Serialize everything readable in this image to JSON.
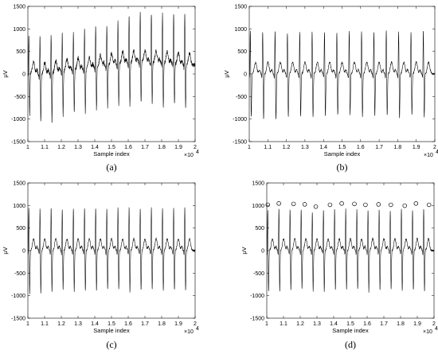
{
  "chart_data": [
    {
      "type": "line",
      "panel_label": "(a)",
      "xlabel": "Sample index",
      "ylabel": "μV",
      "x_exponent": "×10",
      "x_exponent_power": "4",
      "xlim": [
        1,
        2
      ],
      "ylim": [
        -1500,
        1500
      ],
      "xticks": [
        "1",
        "1.1",
        "1.2",
        "1.3",
        "1.4",
        "1.5",
        "1.6",
        "1.7",
        "1.8",
        "1.9",
        "2"
      ],
      "yticks": [
        "1500",
        "1000",
        "500",
        "0",
        "-500",
        "-1000",
        "-1500"
      ],
      "signal": {
        "beat_count": 15,
        "first_beat_x": 1.006,
        "beat_spacing": 0.0666,
        "r_peaks": [
          920,
          950,
          930,
          900,
          940,
          960,
          1000,
          1000,
          1020,
          1150,
          1200,
          1180,
          1200,
          1220,
          1230
        ],
        "s_troughs": [
          -1000,
          -1100,
          -1120,
          -1020,
          -980,
          -1000,
          -980,
          -960,
          -950,
          -980,
          -940,
          -950,
          -1000,
          -950,
          -1000
        ],
        "baseline_wander": [
          40,
          -20,
          10,
          60,
          80,
          100,
          140,
          180,
          220,
          240,
          260,
          250,
          240,
          220,
          200
        ]
      },
      "markers": []
    },
    {
      "type": "line",
      "panel_label": "(b)",
      "xlabel": "Sample index",
      "ylabel": "μV",
      "x_exponent": "×10",
      "x_exponent_power": "4",
      "xlim": [
        1,
        2
      ],
      "ylim": [
        -1500,
        1500
      ],
      "xticks": [
        "1",
        "1.1",
        "1.2",
        "1.3",
        "1.4",
        "1.5",
        "1.6",
        "1.7",
        "1.8",
        "1.9",
        "2"
      ],
      "yticks": [
        "1500",
        "1000",
        "500",
        "0",
        "-500",
        "-1000",
        "-1500"
      ],
      "signal": {
        "beat_count": 15,
        "first_beat_x": 1.006,
        "beat_spacing": 0.0666,
        "r_peaks": [
          1020,
          1020,
          1030,
          1000,
          1020,
          1020,
          1030,
          1000,
          1020,
          1030,
          1020,
          1030,
          1020,
          1010,
          1040
        ],
        "s_troughs": [
          -1000,
          -1050,
          -1050,
          -1000,
          -980,
          -1000,
          -980,
          -960,
          -950,
          -980,
          -960,
          -950,
          -1000,
          -960,
          -1000
        ],
        "baseline_wander": [
          0,
          0,
          0,
          0,
          0,
          0,
          0,
          0,
          0,
          0,
          0,
          0,
          0,
          0,
          0
        ]
      },
      "markers": []
    },
    {
      "type": "line",
      "panel_label": "(c)",
      "xlabel": "Sample index",
      "ylabel": "μV",
      "x_exponent": "×10",
      "x_exponent_power": "4",
      "xlim": [
        1,
        2
      ],
      "ylim": [
        -1500,
        1500
      ],
      "xticks": [
        "1",
        "1.1",
        "1.2",
        "1.3",
        "1.4",
        "1.5",
        "1.6",
        "1.7",
        "1.8",
        "1.9",
        "2"
      ],
      "yticks": [
        "1500",
        "1000",
        "500",
        "0",
        "-500",
        "-1000",
        "-1500"
      ],
      "signal": {
        "beat_count": 15,
        "first_beat_x": 1.006,
        "beat_spacing": 0.0666,
        "r_peaks": [
          1020,
          1020,
          1030,
          1000,
          1020,
          1020,
          1030,
          1000,
          1020,
          1030,
          1020,
          1030,
          1020,
          1010,
          1040
        ],
        "s_troughs": [
          -1000,
          -1000,
          -950,
          -900,
          -950,
          -950,
          -920,
          -900,
          -900,
          -950,
          -920,
          -900,
          -950,
          -920,
          -950
        ],
        "baseline_wander": [
          0,
          0,
          0,
          0,
          0,
          0,
          0,
          0,
          0,
          0,
          0,
          0,
          0,
          0,
          0
        ]
      },
      "markers": []
    },
    {
      "type": "line",
      "panel_label": "(d)",
      "xlabel": "Sample index",
      "ylabel": "μV",
      "x_exponent": "×10",
      "x_exponent_power": "4",
      "xlim": [
        1,
        2
      ],
      "ylim": [
        -1500,
        1500
      ],
      "xticks": [
        "1",
        "1.1",
        "1.2",
        "1.3",
        "1.4",
        "1.5",
        "1.6",
        "1.7",
        "1.8",
        "1.9",
        "2"
      ],
      "yticks": [
        "1500",
        "1000",
        "500",
        "0",
        "-500",
        "-1000",
        "-1500"
      ],
      "signal": {
        "beat_count": 15,
        "first_beat_x": 1.006,
        "beat_spacing": 0.0666,
        "r_peaks": [
          980,
          1010,
          1000,
          990,
          940,
          980,
          1010,
          1000,
          980,
          990,
          980,
          960,
          1010,
          980,
          1020
        ],
        "s_troughs": [
          -950,
          -950,
          -920,
          -900,
          -930,
          -950,
          -920,
          -900,
          -900,
          -950,
          -920,
          -900,
          -950,
          -920,
          -950
        ],
        "baseline_wander": [
          0,
          0,
          0,
          0,
          0,
          0,
          0,
          0,
          0,
          0,
          0,
          0,
          0,
          0,
          0
        ]
      },
      "markers": [
        {
          "x": 1.006,
          "y": 980
        },
        {
          "x": 1.072,
          "y": 1010
        },
        {
          "x": 1.16,
          "y": 1000
        },
        {
          "x": 1.227,
          "y": 990
        },
        {
          "x": 1.293,
          "y": 940
        },
        {
          "x": 1.378,
          "y": 980
        },
        {
          "x": 1.448,
          "y": 1010
        },
        {
          "x": 1.524,
          "y": 1000
        },
        {
          "x": 1.59,
          "y": 980
        },
        {
          "x": 1.668,
          "y": 990
        },
        {
          "x": 1.742,
          "y": 980
        },
        {
          "x": 1.825,
          "y": 960
        },
        {
          "x": 1.892,
          "y": 1010
        },
        {
          "x": 1.97,
          "y": 980
        }
      ]
    }
  ]
}
